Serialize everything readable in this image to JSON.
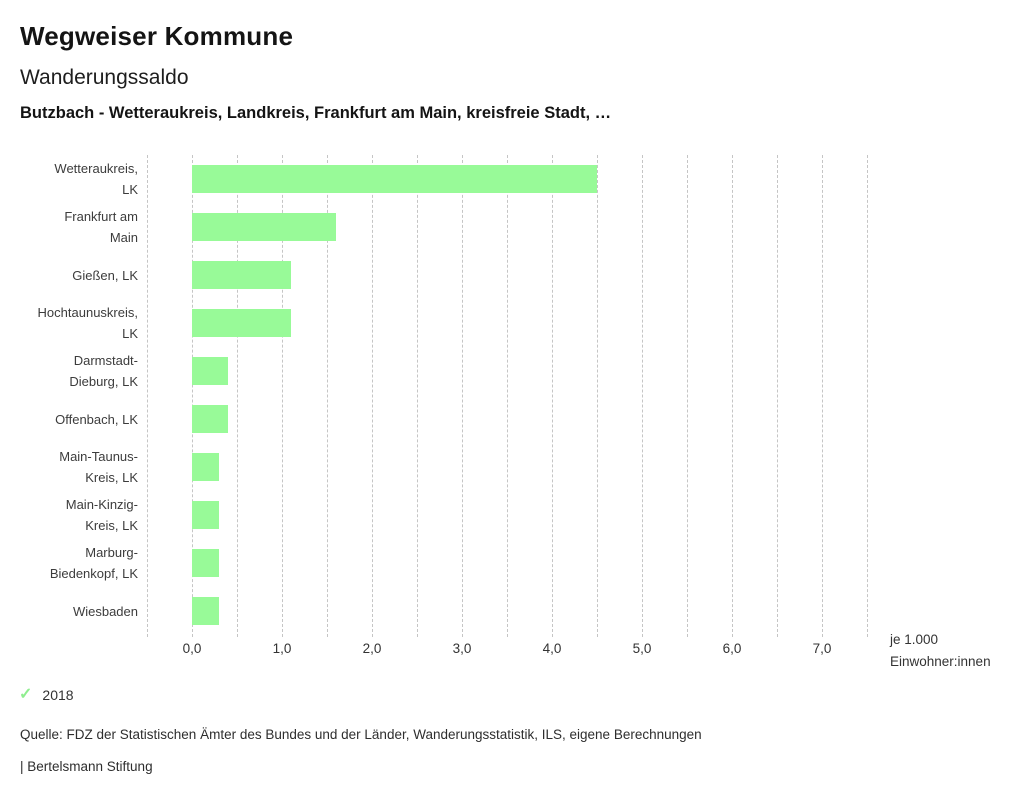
{
  "header": {
    "app_title": "Wegweiser Kommune",
    "chart_title": "Wanderungssaldo",
    "subtitle": "Butzbach - Wetteraukreis, Landkreis, Frankfurt am Main, kreisfreie Stadt, …"
  },
  "chart_data": {
    "type": "bar",
    "orientation": "horizontal",
    "title": "Wanderungssaldo",
    "categories": [
      "Wetteraukreis, LK",
      "Frankfurt am Main",
      "Gießen, LK",
      "Hochtaunuskreis, LK",
      "Darmstadt-Dieburg, LK",
      "Offenbach, LK",
      "Main-Taunus-Kreis, LK",
      "Main-Kinzig-Kreis, LK",
      "Marburg-Biedenkopf, LK",
      "Wiesbaden"
    ],
    "label_lines": [
      [
        "Wetteraukreis,",
        "LK"
      ],
      [
        "Frankfurt am",
        "Main"
      ],
      [
        "Gießen, LK"
      ],
      [
        "Hochtaunuskreis,",
        "LK"
      ],
      [
        "Darmstadt-",
        "Dieburg, LK"
      ],
      [
        "Offenbach, LK"
      ],
      [
        "Main-Taunus-",
        "Kreis, LK"
      ],
      [
        "Main-Kinzig-",
        "Kreis, LK"
      ],
      [
        "Marburg-",
        "Biedenkopf, LK"
      ],
      [
        "Wiesbaden"
      ]
    ],
    "series": [
      {
        "name": "2018",
        "values": [
          4.5,
          1.6,
          1.1,
          1.1,
          0.4,
          0.4,
          0.3,
          0.3,
          0.3,
          0.3
        ]
      }
    ],
    "values": [
      4.5,
      1.6,
      1.1,
      1.1,
      0.4,
      0.4,
      0.3,
      0.3,
      0.3,
      0.3
    ],
    "xlabel": "je 1.000 Einwohner:innen",
    "unit_label_line1": "je 1.000",
    "unit_label_line2": "Einwohner:innen",
    "x_tick_labels": [
      "0,0",
      "1,0",
      "2,0",
      "3,0",
      "4,0",
      "5,0",
      "6,0",
      "7,0"
    ],
    "x_tick_values": [
      0,
      1,
      2,
      3,
      4,
      5,
      6,
      7
    ],
    "xlim": [
      -0.5,
      7.5
    ],
    "gridline_step": 0.5,
    "grid": "vertical-dashed",
    "bar_color": "#98fa98",
    "legend_position": "bottom-left"
  },
  "legend": {
    "check_glyph": "✓",
    "check_color": "#90ee90",
    "year": "2018"
  },
  "footer": {
    "source": "Quelle: FDZ der Statistischen Ämter des Bundes und der Länder, Wanderungsstatistik, ILS, eigene Berechnungen",
    "attribution": "| Bertelsmann Stiftung"
  }
}
